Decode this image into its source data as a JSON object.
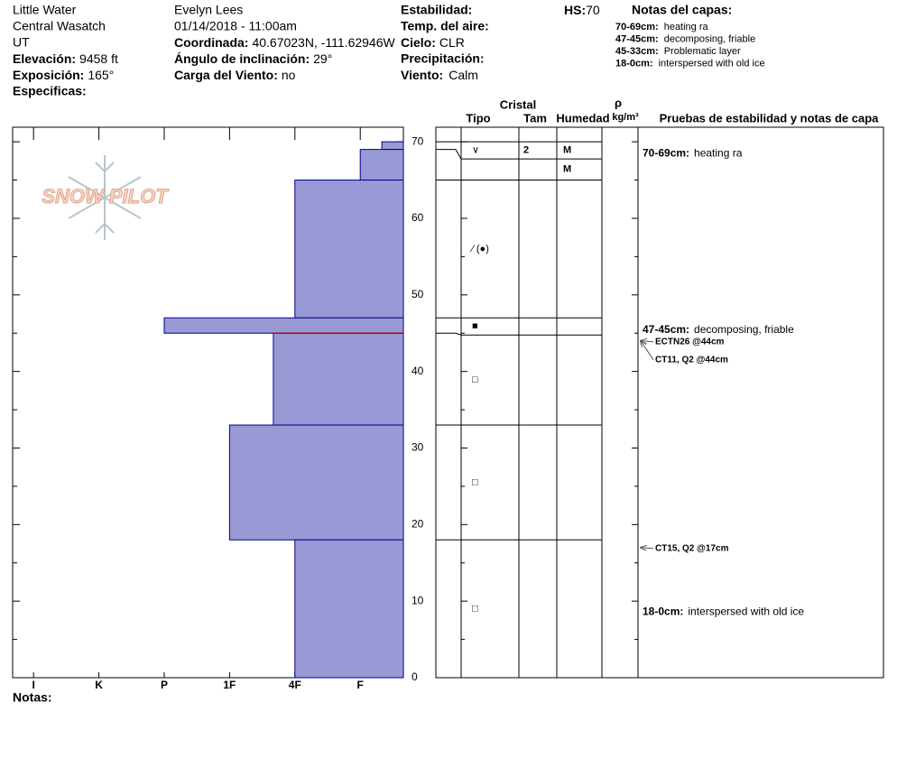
{
  "header": {
    "location": "Little Water",
    "range": "Central Wasatch",
    "state": "UT",
    "elevation_label": "Elevación:",
    "elevation": "9458 ft",
    "aspect_label": "Exposición:",
    "aspect": "165°",
    "specifics_label": "Especificas:",
    "observer": "Evelyn Lees",
    "datetime": "01/14/2018 - 11:00am",
    "coord_label": "Coordinada:",
    "coord": "40.67023N, -111.62946W",
    "slope_label": "Ángulo de inclinación:",
    "slope": "29°",
    "wind_load_label": "Carga del Viento:",
    "wind_load": "no",
    "stability_label": "Estabilidad:",
    "air_temp_label": "Temp. del aire:",
    "sky_label": "Cielo:",
    "sky": "CLR",
    "precip_label": "Precipitación:",
    "wind_label": "Viento:",
    "wind": "Calm",
    "hs_label": "HS:",
    "hs": "70",
    "layer_notes_title": "Notas del capas:",
    "layer_notes": [
      {
        "range": "70-69cm:",
        "text": "heating ra"
      },
      {
        "range": "47-45cm:",
        "text": "decomposing, friable"
      },
      {
        "range": "45-33cm:",
        "text": "Problematic layer"
      },
      {
        "range": "18-0cm:",
        "text": "interspersed with old ice"
      }
    ]
  },
  "logo": "SNOW PILOT",
  "notes_label": "Notas:",
  "table": {
    "crystal": "Cristal",
    "type": "Tipo",
    "size": "Tam",
    "moisture": "Humedad",
    "density_symbol": "ρ",
    "density_unit": "kg/m³",
    "tests_title": "Pruebas de estabilidad y notas de capa"
  },
  "chart_data": {
    "type": "hardness_profile",
    "ylim": [
      0,
      71.9
    ],
    "yticks": [
      0,
      10,
      20,
      30,
      40,
      50,
      60,
      70
    ],
    "minor_yticks": [
      5,
      15,
      25,
      35,
      45,
      55,
      65
    ],
    "xlim": [
      0.68,
      6.66
    ],
    "xticks": [
      {
        "value": 1,
        "label": "I"
      },
      {
        "value": 2,
        "label": "K"
      },
      {
        "value": 3,
        "label": "P"
      },
      {
        "value": 4,
        "label": "1F"
      },
      {
        "value": 5,
        "label": "4F"
      },
      {
        "value": 6,
        "label": "F"
      }
    ],
    "color": "#9999d6",
    "edge_color": "#00008b",
    "marker_depth": 45,
    "marker_color": "#c00000",
    "layers": [
      {
        "top": 70,
        "bottom": 69,
        "hardness": 6.33,
        "grain": "∨",
        "size": "2",
        "moisture": "M",
        "note_range": "70-69cm:",
        "note": "heating ra"
      },
      {
        "top": 69,
        "bottom": 65,
        "hardness": 6,
        "moisture": "M"
      },
      {
        "top": 65,
        "bottom": 47,
        "hardness": 5,
        "grain": "⁄ (●)"
      },
      {
        "top": 47,
        "bottom": 45,
        "hardness": 3,
        "grain": "■",
        "note_range": "47-45cm:",
        "note": "decomposing, friable"
      },
      {
        "top": 45,
        "bottom": 33,
        "hardness": 4.67,
        "grain": "□"
      },
      {
        "top": 33,
        "bottom": 18,
        "hardness": 4,
        "grain": "□"
      },
      {
        "top": 18,
        "bottom": 0,
        "hardness": 5,
        "grain": "□",
        "note_range": "18-0cm:",
        "note": "interspersed with old ice"
      }
    ],
    "tests": [
      {
        "label": "ECTN26 @44cm",
        "depth": 44
      },
      {
        "label": "CT11, Q2 @44cm",
        "depth": 44
      },
      {
        "label": "CT15, Q2 @17cm",
        "depth": 17
      }
    ]
  }
}
